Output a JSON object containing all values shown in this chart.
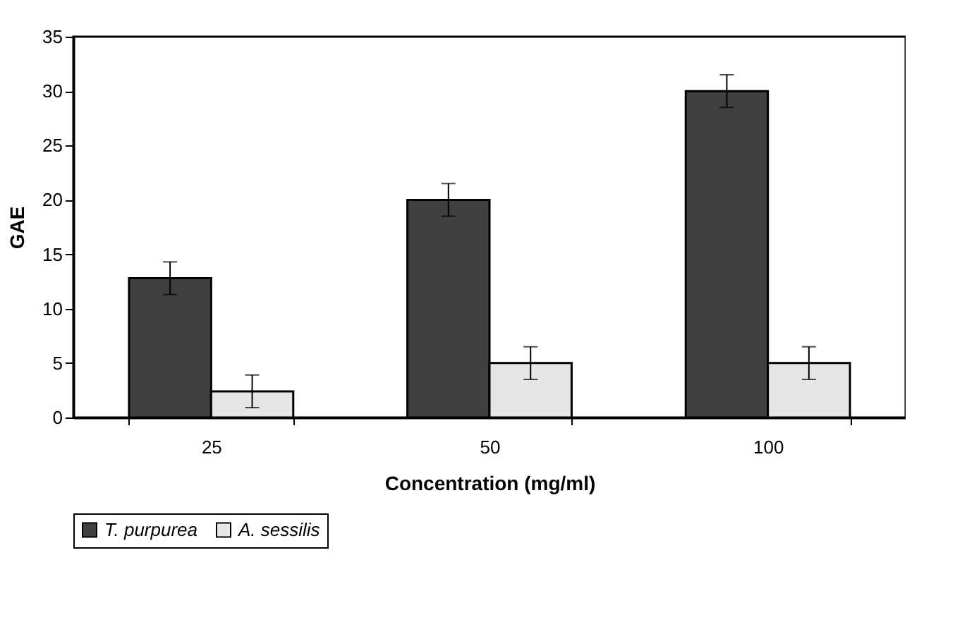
{
  "chart_data": {
    "type": "bar",
    "xlabel": "Concentration (mg/ml)",
    "ylabel": "GAE",
    "categories": [
      "25",
      "50",
      "100"
    ],
    "series": [
      {
        "name": "T. purpurea",
        "color": "#404040",
        "values": [
          12.8,
          20.0,
          30.0
        ],
        "errors": [
          1.5,
          1.5,
          1.5
        ]
      },
      {
        "name": "A. sessilis",
        "color": "#e6e6e6",
        "values": [
          2.4,
          5.0,
          5.0
        ],
        "errors": [
          1.5,
          1.5,
          1.5
        ]
      }
    ],
    "ylim": [
      0,
      35
    ],
    "yticks": [
      0,
      5,
      10,
      15,
      20,
      25,
      30,
      35
    ],
    "grid": false,
    "legend": "bottom"
  }
}
